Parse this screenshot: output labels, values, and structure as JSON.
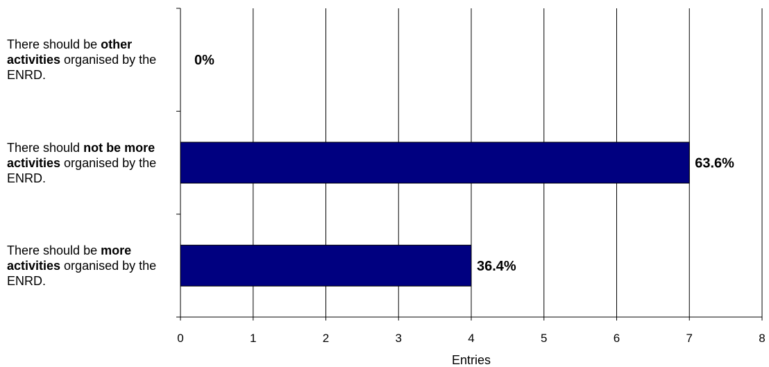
{
  "chart_data": {
    "type": "bar",
    "orientation": "horizontal",
    "categories": [
      [
        {
          "text": "There should be ",
          "bold": false
        },
        {
          "text": "other activities",
          "bold": true
        },
        {
          "text": " organised by the ENRD.",
          "bold": false
        }
      ],
      [
        {
          "text": "There should ",
          "bold": false
        },
        {
          "text": "not be more activities",
          "bold": true
        },
        {
          "text": " organised by the ENRD.",
          "bold": false
        }
      ],
      [
        {
          "text": "There should be ",
          "bold": false
        },
        {
          "text": "more activities",
          "bold": true
        },
        {
          "text": " organised by the ENRD.",
          "bold": false
        }
      ]
    ],
    "values": [
      0,
      7,
      4
    ],
    "data_labels": [
      "0%",
      "63.6%",
      "36.4%"
    ],
    "xlabel": "Entries",
    "xlim": [
      0,
      8
    ],
    "xticks": [
      "0",
      "1",
      "2",
      "3",
      "4",
      "5",
      "6",
      "7",
      "8"
    ],
    "grid": "vertical",
    "legend": "none",
    "bar_color": "#000080"
  }
}
